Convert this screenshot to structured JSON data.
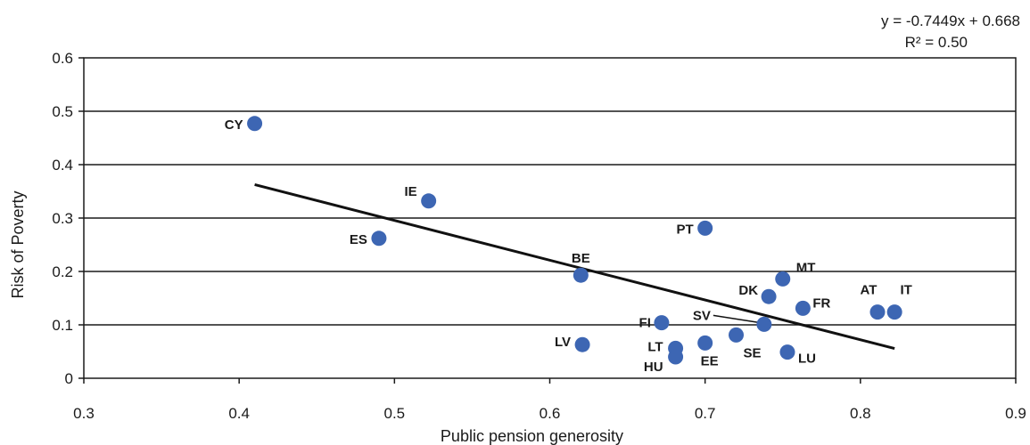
{
  "chart_data": {
    "type": "scatter",
    "xlabel": "Public pension generosity",
    "ylabel": "Risk of Poverty",
    "xlim": [
      0.3,
      0.9
    ],
    "ylim": [
      0,
      0.6
    ],
    "x_ticks": [
      "0.3",
      "0.4",
      "0.5",
      "0.6",
      "0.7",
      "0.8",
      "0.9"
    ],
    "y_ticks": [
      "0",
      "0.1",
      "0.2",
      "0.3",
      "0.4",
      "0.5",
      "0.6"
    ],
    "grid": "horizontal",
    "point_color": "#3d66b3",
    "points": [
      {
        "label": "CY",
        "x": 0.41,
        "y": 0.477
      },
      {
        "label": "IE",
        "x": 0.522,
        "y": 0.332
      },
      {
        "label": "ES",
        "x": 0.49,
        "y": 0.262
      },
      {
        "label": "PT",
        "x": 0.7,
        "y": 0.281
      },
      {
        "label": "BE",
        "x": 0.62,
        "y": 0.193
      },
      {
        "label": "MT",
        "x": 0.75,
        "y": 0.186
      },
      {
        "label": "DK",
        "x": 0.741,
        "y": 0.153
      },
      {
        "label": "FR",
        "x": 0.763,
        "y": 0.131
      },
      {
        "label": "AT",
        "x": 0.811,
        "y": 0.124
      },
      {
        "label": "IT",
        "x": 0.822,
        "y": 0.124
      },
      {
        "label": "FI",
        "x": 0.672,
        "y": 0.104
      },
      {
        "label": "SV",
        "x": 0.738,
        "y": 0.101
      },
      {
        "label": "LV",
        "x": 0.621,
        "y": 0.063
      },
      {
        "label": "LT",
        "x": 0.681,
        "y": 0.056
      },
      {
        "label": "HU",
        "x": 0.681,
        "y": 0.04
      },
      {
        "label": "EE",
        "x": 0.7,
        "y": 0.066
      },
      {
        "label": "SE",
        "x": 0.72,
        "y": 0.081
      },
      {
        "label": "LU",
        "x": 0.753,
        "y": 0.049
      }
    ],
    "trendline": {
      "slope": -0.7449,
      "intercept": 0.668,
      "x_range": [
        0.41,
        0.822
      ],
      "equation": "y = -0.7449x + 0.668",
      "r2_text": "R² = 0.50"
    }
  }
}
